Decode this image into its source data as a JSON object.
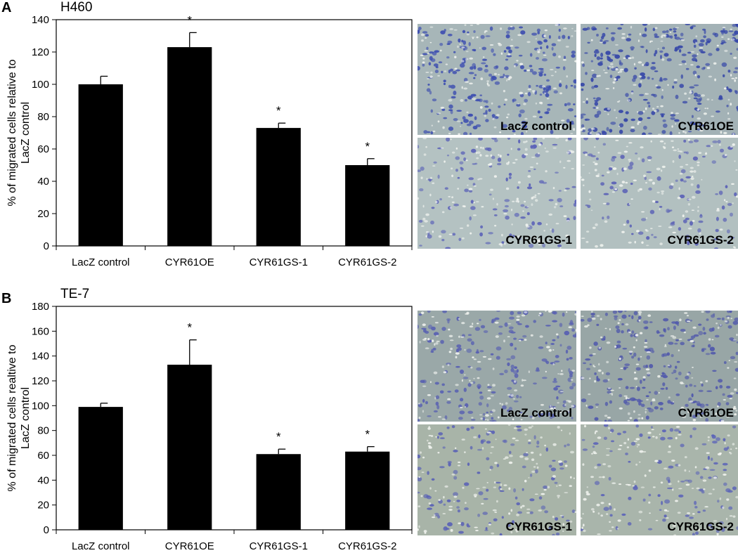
{
  "panels": [
    {
      "label": "A",
      "micrographs": [
        {
          "caption": "LacZ control",
          "tint": "#a7b6b8",
          "cell_color": "#3e4fb0",
          "density": 0.9
        },
        {
          "caption": "CYR61OE",
          "tint": "#a3b2b6",
          "cell_color": "#3546a8",
          "density": 1.0
        },
        {
          "caption": "CYR61GS-1",
          "tint": "#b4c2c2",
          "cell_color": "#5b62b8",
          "density": 0.45
        },
        {
          "caption": "CYR61GS-2",
          "tint": "#b2c0c0",
          "cell_color": "#5a60b6",
          "density": 0.4
        }
      ]
    },
    {
      "label": "B",
      "micrographs": [
        {
          "caption": "LacZ control",
          "tint": "#9aa8a8",
          "cell_color": "#5860b2",
          "density": 0.75
        },
        {
          "caption": "CYR61OE",
          "tint": "#98a6a6",
          "cell_color": "#5058ac",
          "density": 0.85
        },
        {
          "caption": "CYR61GS-1",
          "tint": "#a8b4a8",
          "cell_color": "#5a62b6",
          "density": 0.45
        },
        {
          "caption": "CYR61GS-2",
          "tint": "#a9b5ab",
          "cell_color": "#5c64b8",
          "density": 0.4
        }
      ]
    }
  ],
  "chart_data": [
    {
      "type": "bar",
      "title": "H460",
      "xlabel": "",
      "ylabel": "% of migrated cells relative to LacZ control",
      "categories": [
        "LacZ control",
        "CYR61OE",
        "CYR61GS-1",
        "CYR61GS-2"
      ],
      "values": [
        100,
        123,
        73,
        50
      ],
      "errors": [
        5,
        9,
        3,
        4
      ],
      "significance": [
        "",
        "*",
        "*",
        "*"
      ],
      "ylim": [
        0,
        140
      ],
      "yticks": [
        "0",
        "20",
        "40",
        "60",
        "80",
        "100",
        "120",
        "140"
      ],
      "grid": false,
      "bar_color": "#000000"
    },
    {
      "type": "bar",
      "title": "TE-7",
      "xlabel": "",
      "ylabel": "% of migrated cells realtive to LacZ control",
      "categories": [
        "LacZ control",
        "CYR61OE",
        "CYR61GS-1",
        "CYR61GS-2"
      ],
      "values": [
        99,
        133,
        61,
        63
      ],
      "errors": [
        3,
        20,
        4,
        4
      ],
      "significance": [
        "",
        "*",
        "*",
        "*"
      ],
      "ylim": [
        0,
        180
      ],
      "yticks": [
        "0",
        "20",
        "40",
        "60",
        "80",
        "100",
        "120",
        "140",
        "160",
        "180"
      ],
      "grid": false,
      "bar_color": "#000000"
    }
  ]
}
